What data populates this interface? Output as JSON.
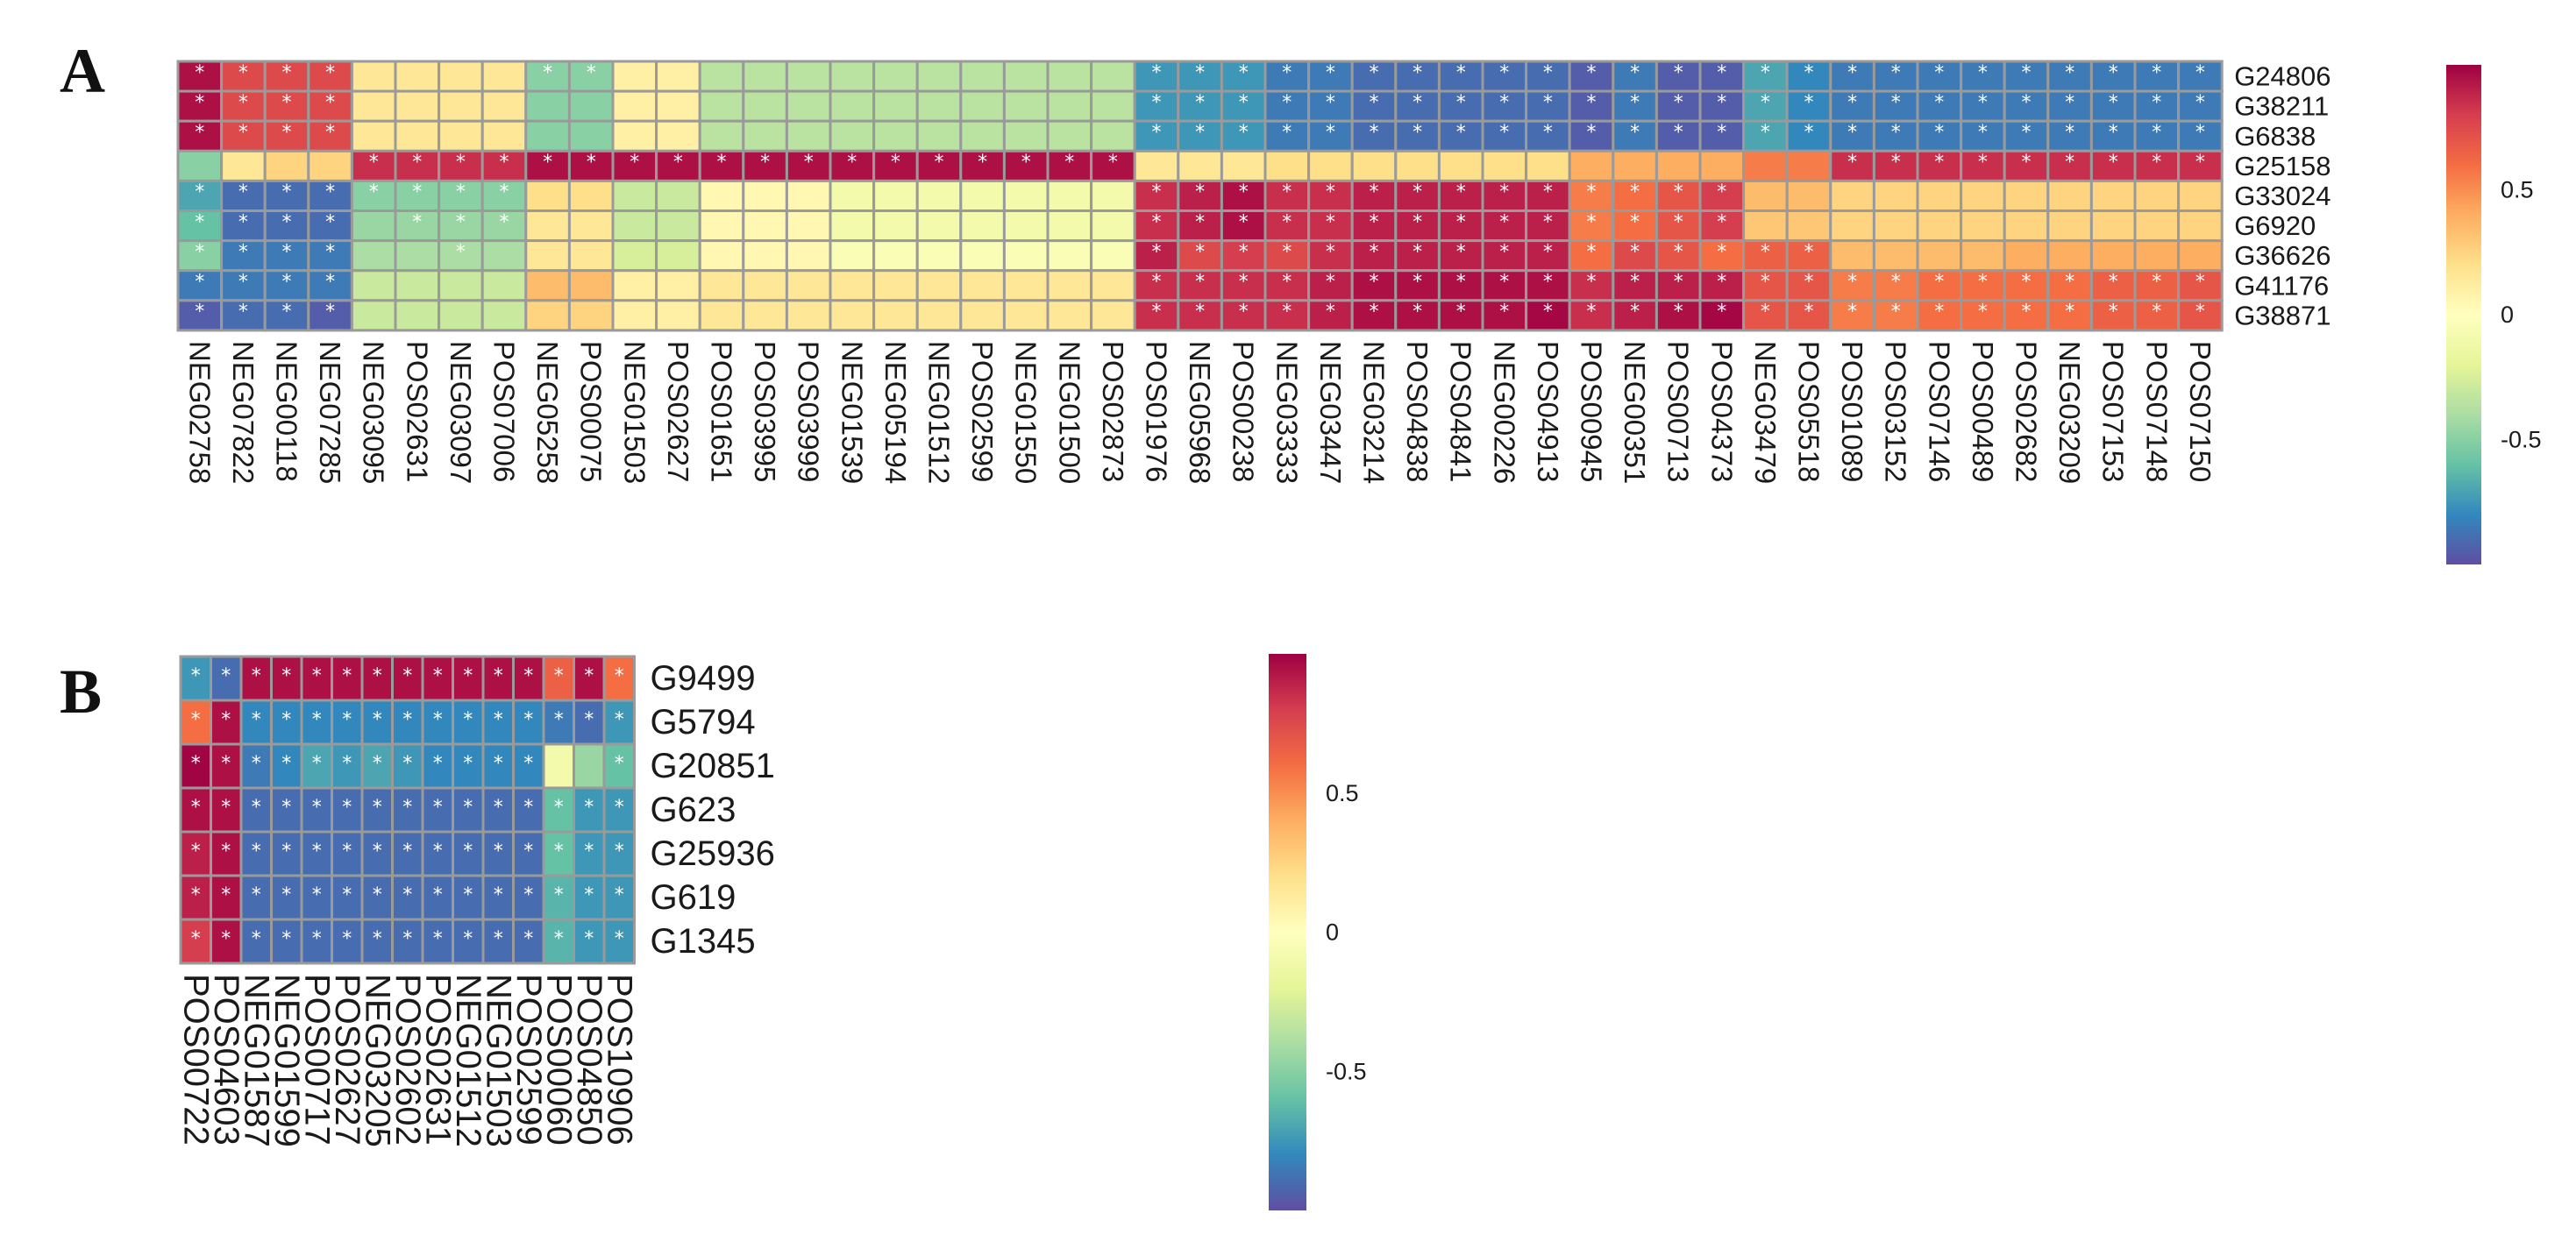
{
  "panels": {
    "a_label": "A",
    "b_label": "B"
  },
  "chart_data": [
    {
      "type": "heatmap",
      "panel": "A",
      "rows": [
        "G24806",
        "G38211",
        "G6838",
        "G25158",
        "G33024",
        "G6920",
        "G36626",
        "G41176",
        "G38871"
      ],
      "columns": [
        "NEG02758",
        "NEG07822",
        "NEG00118",
        "NEG07285",
        "NEG03095",
        "POS02631",
        "NEG03097",
        "POS07006",
        "NEG05258",
        "POS00075",
        "NEG01503",
        "POS02627",
        "POS01651",
        "POS03995",
        "POS03999",
        "NEG01539",
        "NEG05194",
        "NEG01512",
        "POS02599",
        "NEG01550",
        "NEG01500",
        "POS02873",
        "POS01976",
        "NEG05968",
        "POS00238",
        "NEG03333",
        "NEG03447",
        "NEG03214",
        "POS04838",
        "POS04841",
        "NEG00226",
        "POS04913",
        "POS00945",
        "NEG00351",
        "POS00713",
        "POS04373",
        "NEG03479",
        "POS05518",
        "POS01089",
        "POS03152",
        "POS07146",
        "POS00489",
        "POS02682",
        "NEG03209",
        "POS07153",
        "POS07148",
        "POS07150"
      ],
      "values": [
        [
          0.95,
          0.75,
          0.75,
          0.75,
          0.15,
          0.15,
          0.15,
          0.15,
          -0.5,
          -0.5,
          0.1,
          0.1,
          -0.35,
          -0.35,
          -0.35,
          -0.35,
          -0.35,
          -0.35,
          -0.35,
          -0.35,
          -0.35,
          -0.35,
          -0.75,
          -0.75,
          -0.75,
          -0.85,
          -0.85,
          -0.9,
          -0.9,
          -0.9,
          -0.9,
          -0.9,
          -0.95,
          -0.85,
          -0.95,
          -0.95,
          -0.7,
          -0.8,
          -0.85,
          -0.85,
          -0.85,
          -0.85,
          -0.85,
          -0.85,
          -0.85,
          -0.85,
          -0.85
        ],
        [
          0.95,
          0.75,
          0.75,
          0.75,
          0.15,
          0.15,
          0.15,
          0.15,
          -0.5,
          -0.5,
          0.1,
          0.1,
          -0.35,
          -0.35,
          -0.35,
          -0.35,
          -0.35,
          -0.35,
          -0.35,
          -0.35,
          -0.35,
          -0.35,
          -0.75,
          -0.75,
          -0.75,
          -0.85,
          -0.85,
          -0.9,
          -0.9,
          -0.9,
          -0.9,
          -0.9,
          -0.95,
          -0.85,
          -0.95,
          -0.95,
          -0.7,
          -0.8,
          -0.85,
          -0.85,
          -0.85,
          -0.85,
          -0.85,
          -0.85,
          -0.85,
          -0.85,
          -0.85
        ],
        [
          0.95,
          0.75,
          0.75,
          0.75,
          0.15,
          0.15,
          0.15,
          0.15,
          -0.5,
          -0.5,
          0.1,
          0.1,
          -0.35,
          -0.35,
          -0.35,
          -0.35,
          -0.35,
          -0.35,
          -0.35,
          -0.35,
          -0.35,
          -0.35,
          -0.75,
          -0.75,
          -0.75,
          -0.85,
          -0.85,
          -0.9,
          -0.9,
          -0.9,
          -0.9,
          -0.9,
          -0.95,
          -0.85,
          -0.95,
          -0.95,
          -0.7,
          -0.8,
          -0.85,
          -0.85,
          -0.85,
          -0.85,
          -0.85,
          -0.85,
          -0.85,
          -0.85,
          -0.85
        ],
        [
          -0.5,
          0.15,
          0.25,
          0.25,
          0.85,
          0.85,
          0.85,
          0.85,
          0.95,
          0.95,
          0.95,
          0.95,
          0.95,
          0.95,
          0.95,
          0.95,
          0.95,
          0.95,
          0.95,
          0.95,
          0.95,
          0.95,
          0.15,
          0.15,
          0.15,
          0.2,
          0.2,
          0.2,
          0.2,
          0.2,
          0.2,
          0.2,
          0.4,
          0.4,
          0.4,
          0.4,
          0.55,
          0.55,
          0.85,
          0.85,
          0.85,
          0.85,
          0.85,
          0.85,
          0.85,
          0.85,
          0.85
        ],
        [
          -0.7,
          -0.9,
          -0.9,
          -0.9,
          -0.5,
          -0.5,
          -0.5,
          -0.5,
          0.2,
          0.2,
          -0.3,
          -0.3,
          0.05,
          0.05,
          0.05,
          -0.1,
          -0.1,
          -0.1,
          -0.1,
          -0.1,
          -0.1,
          -0.1,
          0.85,
          0.9,
          0.95,
          0.85,
          0.85,
          0.9,
          0.9,
          0.9,
          0.9,
          0.9,
          0.55,
          0.6,
          0.7,
          0.8,
          0.35,
          0.35,
          0.25,
          0.25,
          0.25,
          0.25,
          0.25,
          0.25,
          0.25,
          0.25,
          0.25
        ],
        [
          -0.6,
          -0.9,
          -0.9,
          -0.9,
          -0.45,
          -0.45,
          -0.45,
          -0.45,
          0.15,
          0.15,
          -0.3,
          -0.3,
          0.05,
          0.05,
          0.05,
          -0.1,
          -0.1,
          -0.1,
          -0.1,
          -0.1,
          -0.1,
          -0.1,
          0.85,
          0.9,
          0.95,
          0.85,
          0.85,
          0.9,
          0.9,
          0.9,
          0.9,
          0.9,
          0.55,
          0.6,
          0.7,
          0.8,
          0.3,
          0.3,
          0.25,
          0.25,
          0.25,
          0.25,
          0.25,
          0.25,
          0.25,
          0.25,
          0.25
        ],
        [
          -0.5,
          -0.85,
          -0.85,
          -0.85,
          -0.4,
          -0.4,
          -0.4,
          -0.4,
          0.15,
          0.15,
          -0.25,
          -0.25,
          0.05,
          0.05,
          0.05,
          -0.05,
          -0.05,
          -0.05,
          -0.05,
          -0.05,
          -0.05,
          -0.05,
          0.9,
          0.75,
          0.8,
          0.75,
          0.85,
          0.9,
          0.9,
          0.9,
          0.9,
          0.9,
          0.6,
          0.75,
          0.7,
          0.6,
          0.65,
          0.65,
          0.35,
          0.35,
          0.35,
          0.35,
          0.4,
          0.4,
          0.4,
          0.4,
          0.4
        ],
        [
          -0.85,
          -0.85,
          -0.85,
          -0.85,
          -0.3,
          -0.3,
          -0.3,
          -0.3,
          0.35,
          0.35,
          0.1,
          0.1,
          0.15,
          0.15,
          0.15,
          0.15,
          0.15,
          0.15,
          0.15,
          0.15,
          0.15,
          0.15,
          0.85,
          0.85,
          0.85,
          0.85,
          0.9,
          0.95,
          0.95,
          0.95,
          0.95,
          0.95,
          0.85,
          0.9,
          0.9,
          0.9,
          0.7,
          0.7,
          0.55,
          0.55,
          0.6,
          0.6,
          0.6,
          0.6,
          0.65,
          0.65,
          0.7
        ],
        [
          -0.95,
          -0.9,
          -0.9,
          -0.95,
          -0.3,
          -0.3,
          -0.3,
          -0.3,
          0.25,
          0.25,
          0.1,
          0.1,
          0.15,
          0.15,
          0.15,
          0.15,
          0.15,
          0.15,
          0.15,
          0.15,
          0.15,
          0.15,
          0.85,
          0.85,
          0.85,
          0.85,
          0.9,
          0.95,
          0.95,
          0.95,
          0.95,
          0.98,
          0.85,
          0.9,
          0.95,
          0.98,
          0.7,
          0.7,
          0.55,
          0.55,
          0.6,
          0.6,
          0.6,
          0.6,
          0.65,
          0.65,
          0.7
        ]
      ],
      "significant": [
        [
          1,
          1,
          1,
          1,
          0,
          0,
          0,
          0,
          1,
          1,
          0,
          0,
          0,
          0,
          0,
          0,
          0,
          0,
          0,
          0,
          0,
          0,
          1,
          1,
          1,
          1,
          1,
          1,
          1,
          1,
          1,
          1,
          1,
          1,
          1,
          1,
          1,
          1,
          1,
          1,
          1,
          1,
          1,
          1,
          1,
          1,
          1
        ],
        [
          1,
          1,
          1,
          1,
          0,
          0,
          0,
          0,
          0,
          0,
          0,
          0,
          0,
          0,
          0,
          0,
          0,
          0,
          0,
          0,
          0,
          0,
          1,
          1,
          1,
          1,
          1,
          1,
          1,
          1,
          1,
          1,
          1,
          1,
          1,
          1,
          1,
          1,
          1,
          1,
          1,
          1,
          1,
          1,
          1,
          1,
          1
        ],
        [
          1,
          1,
          1,
          1,
          0,
          0,
          0,
          0,
          0,
          0,
          0,
          0,
          0,
          0,
          0,
          0,
          0,
          0,
          0,
          0,
          0,
          0,
          1,
          1,
          1,
          1,
          1,
          1,
          1,
          1,
          1,
          1,
          1,
          1,
          1,
          1,
          1,
          1,
          1,
          1,
          1,
          1,
          1,
          1,
          1,
          1,
          1
        ],
        [
          0,
          0,
          0,
          0,
          1,
          1,
          1,
          1,
          1,
          1,
          1,
          1,
          1,
          1,
          1,
          1,
          1,
          1,
          1,
          1,
          1,
          1,
          0,
          0,
          0,
          0,
          0,
          0,
          0,
          0,
          0,
          0,
          0,
          0,
          0,
          0,
          0,
          0,
          1,
          1,
          1,
          1,
          1,
          1,
          1,
          1,
          1
        ],
        [
          1,
          1,
          1,
          1,
          1,
          1,
          1,
          1,
          0,
          0,
          0,
          0,
          0,
          0,
          0,
          0,
          0,
          0,
          0,
          0,
          0,
          0,
          1,
          1,
          1,
          1,
          1,
          1,
          1,
          1,
          1,
          1,
          1,
          1,
          1,
          1,
          0,
          0,
          0,
          0,
          0,
          0,
          0,
          0,
          0,
          0,
          0
        ],
        [
          1,
          1,
          1,
          1,
          0,
          1,
          1,
          1,
          0,
          0,
          0,
          0,
          0,
          0,
          0,
          0,
          0,
          0,
          0,
          0,
          0,
          0,
          1,
          1,
          1,
          1,
          1,
          1,
          1,
          1,
          1,
          1,
          1,
          1,
          1,
          1,
          0,
          0,
          0,
          0,
          0,
          0,
          0,
          0,
          0,
          0,
          0
        ],
        [
          1,
          1,
          1,
          1,
          0,
          0,
          1,
          0,
          0,
          0,
          0,
          0,
          0,
          0,
          0,
          0,
          0,
          0,
          0,
          0,
          0,
          0,
          1,
          1,
          1,
          1,
          1,
          1,
          1,
          1,
          1,
          1,
          1,
          1,
          1,
          1,
          1,
          1,
          0,
          0,
          0,
          0,
          0,
          0,
          0,
          0,
          0
        ],
        [
          1,
          1,
          1,
          1,
          0,
          0,
          0,
          0,
          0,
          0,
          0,
          0,
          0,
          0,
          0,
          0,
          0,
          0,
          0,
          0,
          0,
          0,
          1,
          1,
          1,
          1,
          1,
          1,
          1,
          1,
          1,
          1,
          1,
          1,
          1,
          1,
          1,
          1,
          1,
          1,
          1,
          1,
          1,
          1,
          1,
          1,
          1
        ],
        [
          1,
          1,
          1,
          1,
          0,
          0,
          0,
          0,
          0,
          0,
          0,
          0,
          0,
          0,
          0,
          0,
          0,
          0,
          0,
          0,
          0,
          0,
          1,
          1,
          1,
          1,
          1,
          1,
          1,
          1,
          1,
          1,
          1,
          1,
          1,
          1,
          1,
          1,
          1,
          1,
          1,
          1,
          1,
          1,
          1,
          1,
          1
        ]
      ],
      "marker": "*",
      "colorbar": {
        "ticks": [
          0.5,
          0,
          -0.5
        ],
        "tick_labels": [
          "0.5",
          "0",
          "-0.5"
        ],
        "range": [
          -1,
          1
        ],
        "colormap": "Spectral_r"
      },
      "colors": {
        "cell_border": "#9a9a9a",
        "marker": "#ffffff"
      }
    },
    {
      "type": "heatmap",
      "panel": "B",
      "rows": [
        "G9499",
        "G5794",
        "G20851",
        "G623",
        "G25936",
        "G619",
        "G1345"
      ],
      "columns": [
        "POS00722",
        "POS04603",
        "NEG01587",
        "NEG01599",
        "POS00717",
        "POS02627",
        "NEG03205",
        "POS02602",
        "POS02631",
        "NEG01512",
        "NEG01503",
        "POS02599",
        "POS00060",
        "POS04850",
        "POS10906"
      ],
      "values": [
        [
          -0.75,
          -0.9,
          0.95,
          0.95,
          0.95,
          0.95,
          0.95,
          0.95,
          0.95,
          0.95,
          0.95,
          0.95,
          0.65,
          0.95,
          0.6
        ],
        [
          0.6,
          0.95,
          -0.8,
          -0.8,
          -0.8,
          -0.8,
          -0.8,
          -0.8,
          -0.8,
          -0.8,
          -0.8,
          -0.8,
          -0.85,
          -0.9,
          -0.75
        ],
        [
          0.99,
          0.95,
          -0.85,
          -0.8,
          -0.7,
          -0.75,
          -0.7,
          -0.75,
          -0.8,
          -0.8,
          -0.8,
          -0.8,
          -0.1,
          -0.45,
          -0.6
        ],
        [
          0.95,
          0.95,
          -0.9,
          -0.9,
          -0.9,
          -0.9,
          -0.9,
          -0.9,
          -0.9,
          -0.9,
          -0.9,
          -0.9,
          -0.6,
          -0.75,
          -0.75
        ],
        [
          0.9,
          0.95,
          -0.9,
          -0.9,
          -0.9,
          -0.9,
          -0.9,
          -0.9,
          -0.9,
          -0.9,
          -0.9,
          -0.9,
          -0.6,
          -0.75,
          -0.75
        ],
        [
          0.9,
          0.95,
          -0.9,
          -0.9,
          -0.9,
          -0.9,
          -0.9,
          -0.9,
          -0.9,
          -0.9,
          -0.9,
          -0.9,
          -0.65,
          -0.75,
          -0.75
        ],
        [
          0.8,
          0.95,
          -0.9,
          -0.9,
          -0.9,
          -0.9,
          -0.9,
          -0.9,
          -0.9,
          -0.9,
          -0.9,
          -0.9,
          -0.65,
          -0.75,
          -0.75
        ]
      ],
      "significant": [
        [
          1,
          1,
          1,
          1,
          1,
          1,
          1,
          1,
          1,
          1,
          1,
          1,
          1,
          1,
          1
        ],
        [
          1,
          1,
          1,
          1,
          1,
          1,
          1,
          1,
          1,
          1,
          1,
          1,
          1,
          1,
          1
        ],
        [
          1,
          1,
          1,
          1,
          1,
          1,
          1,
          1,
          1,
          1,
          1,
          1,
          0,
          0,
          1
        ],
        [
          1,
          1,
          1,
          1,
          1,
          1,
          1,
          1,
          1,
          1,
          1,
          1,
          1,
          1,
          1
        ],
        [
          1,
          1,
          1,
          1,
          1,
          1,
          1,
          1,
          1,
          1,
          1,
          1,
          1,
          1,
          1
        ],
        [
          1,
          1,
          1,
          1,
          1,
          1,
          1,
          1,
          1,
          1,
          1,
          1,
          1,
          1,
          1
        ],
        [
          1,
          1,
          1,
          1,
          1,
          1,
          1,
          1,
          1,
          1,
          1,
          1,
          1,
          1,
          1
        ]
      ],
      "marker": "*",
      "colorbar": {
        "ticks": [
          0.5,
          0,
          -0.5
        ],
        "tick_labels": [
          "0.5",
          "0",
          "-0.5"
        ],
        "range": [
          -1,
          1
        ],
        "colormap": "Spectral_r"
      },
      "colors": {
        "cell_border": "#9a9a9a",
        "marker": "#ffffff"
      }
    }
  ]
}
